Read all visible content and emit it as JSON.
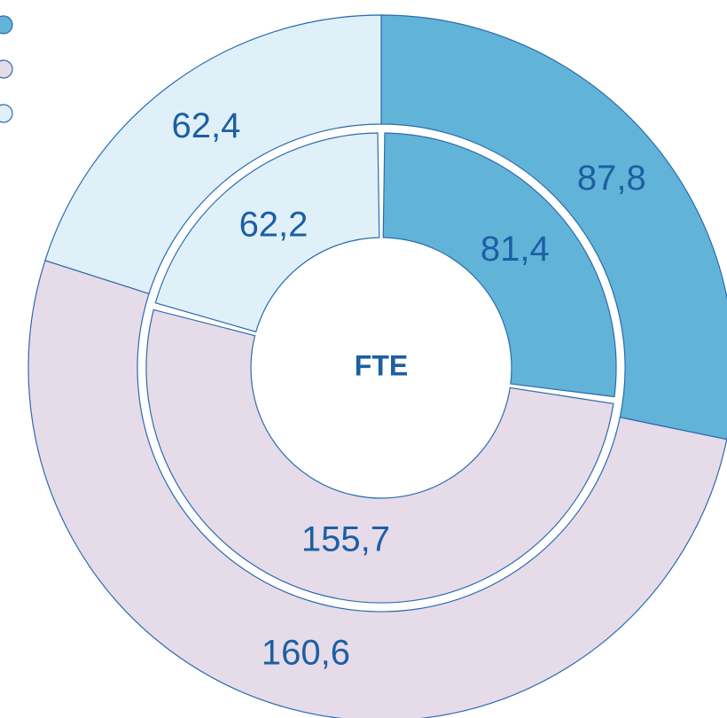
{
  "chart_data": {
    "type": "donut",
    "center_label": "FTE",
    "colors": [
      "#62b3d8",
      "#e6dbe9",
      "#e0f0f9"
    ],
    "series": [
      {
        "values": [
          87.8,
          160.6,
          62.4
        ],
        "value_labels": [
          "87,8",
          "160,6",
          "62,4"
        ]
      },
      {
        "values": [
          81.4,
          155.7,
          62.2
        ],
        "value_labels": [
          "81,4",
          "155,7",
          "62,2"
        ]
      }
    ]
  }
}
